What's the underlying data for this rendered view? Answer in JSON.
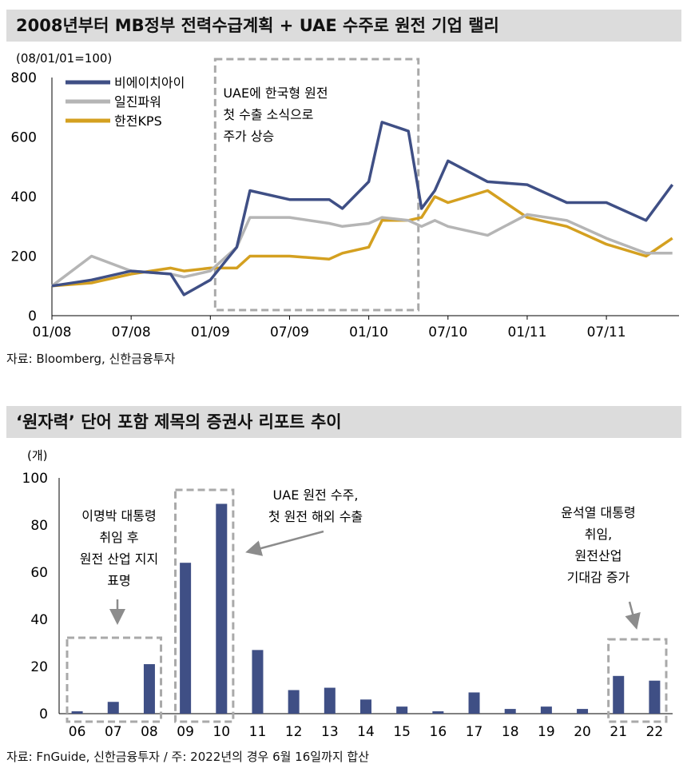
{
  "chart1": {
    "title": "2008년부터 MB정부 전력수급계획 + UAE 수주로 원전 기업 랠리",
    "unit_label": "(08/01/01=100)",
    "source": "자료: Bloomberg, 신한금융투자",
    "annotation": [
      "UAE에 한국형 원전",
      "첫 수출 소식으로",
      "주가 상승"
    ],
    "chart_data": {
      "type": "line",
      "ylim": [
        0,
        800
      ],
      "yticks": [
        "0",
        "200",
        "400",
        "600",
        "800"
      ],
      "xticks": [
        "01/08",
        "07/08",
        "01/09",
        "07/09",
        "01/10",
        "07/10",
        "01/11",
        "07/11"
      ],
      "x": [
        "01/08",
        "04/08",
        "07/08",
        "10/08",
        "11/08",
        "01/09",
        "03/09",
        "04/09",
        "07/09",
        "10/09",
        "11/09",
        "01/10",
        "02/10",
        "04/10",
        "05/10",
        "06/10",
        "07/10",
        "10/10",
        "01/11",
        "04/11",
        "07/11",
        "10/11",
        "12/11"
      ],
      "series": [
        {
          "name": "비에이치아이",
          "color": "#3f4f85",
          "values": [
            100,
            120,
            150,
            140,
            70,
            120,
            230,
            420,
            390,
            390,
            360,
            450,
            650,
            620,
            360,
            420,
            520,
            450,
            440,
            380,
            380,
            320,
            440
          ]
        },
        {
          "name": "일진파워",
          "color": "#b5b5b5",
          "values": [
            100,
            200,
            150,
            140,
            130,
            150,
            230,
            330,
            330,
            310,
            300,
            310,
            330,
            320,
            300,
            320,
            300,
            270,
            340,
            320,
            260,
            210,
            210
          ]
        },
        {
          "name": "한전KPS",
          "color": "#d4a020",
          "values": [
            100,
            110,
            140,
            160,
            150,
            160,
            160,
            200,
            200,
            190,
            210,
            230,
            320,
            320,
            330,
            400,
            380,
            420,
            330,
            300,
            240,
            200,
            260
          ]
        }
      ]
    }
  },
  "chart2": {
    "title": "‘원자력’ 단어 포함 제목의 증권사 리포트 추이",
    "unit_label": "(개)",
    "source": "자료: FnGuide, 신한금융투자 / 주: 2022년의 경우 6월 16일까지 합산",
    "annotations": {
      "left": [
        "이명박 대통령",
        "취임 후",
        "원전 산업 지지",
        "표명"
      ],
      "mid": [
        "UAE 원전 수주,",
        "첫 원전 해외 수출"
      ],
      "right": [
        "윤석열 대통령",
        "취임,",
        "원전산업",
        "기대감 증가"
      ]
    },
    "chart_data": {
      "type": "bar",
      "ylim": [
        0,
        100
      ],
      "yticks": [
        "0",
        "20",
        "40",
        "60",
        "80",
        "100"
      ],
      "categories": [
        "06",
        "07",
        "08",
        "09",
        "10",
        "11",
        "12",
        "13",
        "14",
        "15",
        "16",
        "17",
        "18",
        "19",
        "20",
        "21",
        "22"
      ],
      "values": [
        1,
        5,
        21,
        64,
        89,
        27,
        10,
        11,
        6,
        3,
        1,
        9,
        2,
        3,
        2,
        16,
        14
      ],
      "color": "#3f4f85"
    }
  }
}
